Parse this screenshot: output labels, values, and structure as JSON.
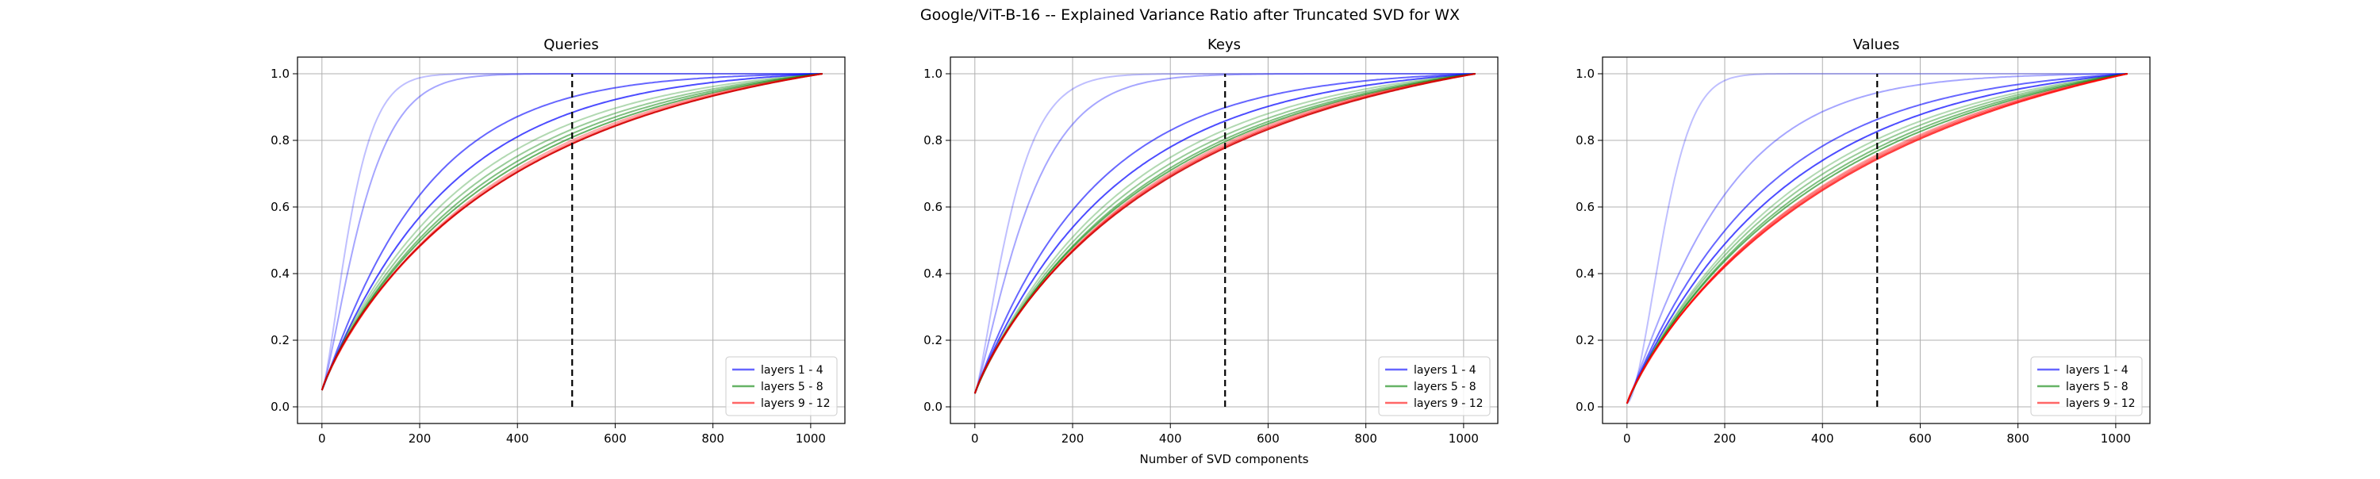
{
  "figure": {
    "title": "Google/ViT-B-16 -- Explained Variance Ratio after Truncated SVD for WX"
  },
  "chart_data": [
    {
      "type": "line",
      "title": "Queries",
      "xlabel": "",
      "ylabel": "",
      "xlim": [
        -50,
        1070
      ],
      "ylim": [
        -0.05,
        1.05
      ],
      "xticks": [
        0,
        200,
        400,
        600,
        800,
        1000
      ],
      "yticks": [
        0.0,
        0.2,
        0.4,
        0.6,
        0.8,
        1.0
      ],
      "grid": true,
      "legend_position": "lower-right",
      "legend": [
        {
          "label": "layers 1 - 4",
          "color": "#0000ff"
        },
        {
          "label": "layers 5 - 8",
          "color": "#008000"
        },
        {
          "label": "layers 9 - 12",
          "color": "#ff0000"
        }
      ],
      "vline": {
        "x": 512,
        "y0": 0.0,
        "y1": 1.0,
        "color": "#000000",
        "style": "dashed"
      },
      "x_max": 1024,
      "series": [
        {
          "group": 0,
          "color": "#0000ff",
          "opacity": 0.25,
          "y0": 0.05,
          "k": 70,
          "p": 1.4
        },
        {
          "group": 0,
          "color": "#0000ff",
          "opacity": 0.35,
          "y0": 0.05,
          "k": 95,
          "p": 1.3
        },
        {
          "group": 0,
          "color": "#0000ff",
          "opacity": 0.6,
          "y0": 0.05,
          "k": 210,
          "p": 1.05
        },
        {
          "group": 0,
          "color": "#0000ff",
          "opacity": 0.7,
          "y0": 0.05,
          "k": 260,
          "p": 1.0
        },
        {
          "group": 1,
          "color": "#008000",
          "opacity": 0.3,
          "y0": 0.05,
          "k": 300,
          "p": 0.95
        },
        {
          "group": 1,
          "color": "#008000",
          "opacity": 0.4,
          "y0": 0.05,
          "k": 330,
          "p": 0.93
        },
        {
          "group": 1,
          "color": "#008000",
          "opacity": 0.5,
          "y0": 0.05,
          "k": 355,
          "p": 0.92
        },
        {
          "group": 1,
          "color": "#008000",
          "opacity": 0.6,
          "y0": 0.05,
          "k": 380,
          "p": 0.9
        },
        {
          "group": 2,
          "color": "#ff0000",
          "opacity": 0.35,
          "y0": 0.05,
          "k": 400,
          "p": 0.9
        },
        {
          "group": 2,
          "color": "#ff0000",
          "opacity": 0.45,
          "y0": 0.05,
          "k": 420,
          "p": 0.88
        },
        {
          "group": 2,
          "color": "#ff0000",
          "opacity": 0.6,
          "y0": 0.05,
          "k": 435,
          "p": 0.87
        },
        {
          "group": 2,
          "color": "#cc0000",
          "opacity": 0.85,
          "y0": 0.05,
          "k": 440,
          "p": 0.86
        }
      ]
    },
    {
      "type": "line",
      "title": "Keys",
      "xlabel": "Number of SVD components",
      "ylabel": "",
      "xlim": [
        -50,
        1070
      ],
      "ylim": [
        -0.05,
        1.05
      ],
      "xticks": [
        0,
        200,
        400,
        600,
        800,
        1000
      ],
      "yticks": [
        0.0,
        0.2,
        0.4,
        0.6,
        0.8,
        1.0
      ],
      "grid": true,
      "legend_position": "lower-right",
      "legend": [
        {
          "label": "layers 1 - 4",
          "color": "#0000ff"
        },
        {
          "label": "layers 5 - 8",
          "color": "#008000"
        },
        {
          "label": "layers 9 - 12",
          "color": "#ff0000"
        }
      ],
      "vline": {
        "x": 512,
        "y0": 0.0,
        "y1": 1.0,
        "color": "#000000",
        "style": "dashed"
      },
      "x_max": 1024,
      "series": [
        {
          "group": 0,
          "color": "#0000ff",
          "opacity": 0.25,
          "y0": 0.04,
          "k": 85,
          "p": 1.3
        },
        {
          "group": 0,
          "color": "#0000ff",
          "opacity": 0.35,
          "y0": 0.04,
          "k": 120,
          "p": 1.2
        },
        {
          "group": 0,
          "color": "#0000ff",
          "opacity": 0.6,
          "y0": 0.04,
          "k": 240,
          "p": 1.0
        },
        {
          "group": 0,
          "color": "#0000ff",
          "opacity": 0.7,
          "y0": 0.04,
          "k": 290,
          "p": 0.97
        },
        {
          "group": 1,
          "color": "#008000",
          "opacity": 0.3,
          "y0": 0.04,
          "k": 330,
          "p": 0.95
        },
        {
          "group": 1,
          "color": "#008000",
          "opacity": 0.4,
          "y0": 0.04,
          "k": 360,
          "p": 0.93
        },
        {
          "group": 1,
          "color": "#008000",
          "opacity": 0.5,
          "y0": 0.04,
          "k": 385,
          "p": 0.92
        },
        {
          "group": 1,
          "color": "#008000",
          "opacity": 0.6,
          "y0": 0.04,
          "k": 405,
          "p": 0.9
        },
        {
          "group": 2,
          "color": "#ff0000",
          "opacity": 0.35,
          "y0": 0.04,
          "k": 420,
          "p": 0.9
        },
        {
          "group": 2,
          "color": "#ff0000",
          "opacity": 0.45,
          "y0": 0.04,
          "k": 440,
          "p": 0.88
        },
        {
          "group": 2,
          "color": "#ff0000",
          "opacity": 0.6,
          "y0": 0.04,
          "k": 455,
          "p": 0.87
        },
        {
          "group": 2,
          "color": "#cc0000",
          "opacity": 0.85,
          "y0": 0.04,
          "k": 470,
          "p": 0.86
        }
      ]
    },
    {
      "type": "line",
      "title": "Values",
      "xlabel": "",
      "ylabel": "",
      "xlim": [
        -50,
        1070
      ],
      "ylim": [
        -0.05,
        1.05
      ],
      "xticks": [
        0,
        200,
        400,
        600,
        800,
        1000
      ],
      "yticks": [
        0.0,
        0.2,
        0.4,
        0.6,
        0.8,
        1.0
      ],
      "grid": true,
      "legend_position": "lower-right",
      "legend": [
        {
          "label": "layers 1 - 4",
          "color": "#0000ff"
        },
        {
          "label": "layers 5 - 8",
          "color": "#008000"
        },
        {
          "label": "layers 9 - 12",
          "color": "#ff0000"
        }
      ],
      "vline": {
        "x": 512,
        "y0": 0.0,
        "y1": 1.0,
        "color": "#000000",
        "style": "dashed"
      },
      "x_max": 1024,
      "series": [
        {
          "group": 0,
          "color": "#0000ff",
          "opacity": 0.25,
          "y0": 0.01,
          "k": 90,
          "p": 1.7
        },
        {
          "group": 0,
          "color": "#0000ff",
          "opacity": 0.35,
          "y0": 0.01,
          "k": 200,
          "p": 1.1
        },
        {
          "group": 0,
          "color": "#0000ff",
          "opacity": 0.6,
          "y0": 0.01,
          "k": 280,
          "p": 1.0
        },
        {
          "group": 0,
          "color": "#0000ff",
          "opacity": 0.7,
          "y0": 0.01,
          "k": 330,
          "p": 0.97
        },
        {
          "group": 1,
          "color": "#008000",
          "opacity": 0.3,
          "y0": 0.01,
          "k": 370,
          "p": 0.95
        },
        {
          "group": 1,
          "color": "#008000",
          "opacity": 0.4,
          "y0": 0.01,
          "k": 400,
          "p": 0.93
        },
        {
          "group": 1,
          "color": "#008000",
          "opacity": 0.5,
          "y0": 0.01,
          "k": 430,
          "p": 0.92
        },
        {
          "group": 1,
          "color": "#008000",
          "opacity": 0.6,
          "y0": 0.01,
          "k": 460,
          "p": 0.9
        },
        {
          "group": 2,
          "color": "#ff0000",
          "opacity": 0.35,
          "y0": 0.01,
          "k": 490,
          "p": 0.9
        },
        {
          "group": 2,
          "color": "#ff0000",
          "opacity": 0.45,
          "y0": 0.01,
          "k": 515,
          "p": 0.88
        },
        {
          "group": 2,
          "color": "#ff0000",
          "opacity": 0.6,
          "y0": 0.01,
          "k": 540,
          "p": 0.87
        },
        {
          "group": 2,
          "color": "#ff0000",
          "opacity": 0.75,
          "y0": 0.01,
          "k": 565,
          "p": 0.86
        }
      ]
    }
  ]
}
